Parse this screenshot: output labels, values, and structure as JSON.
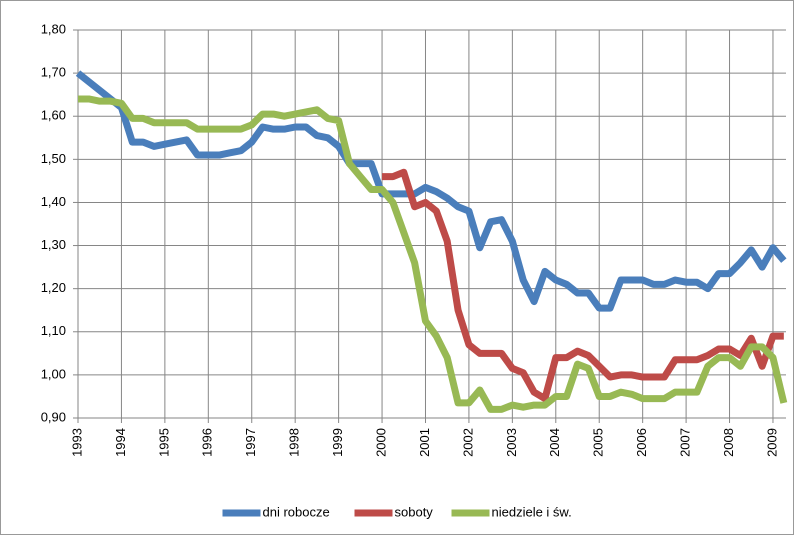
{
  "chart_data": {
    "type": "line",
    "x": [
      1993,
      1993.25,
      1993.5,
      1993.75,
      1994,
      1994.25,
      1994.5,
      1994.75,
      1995,
      1995.25,
      1995.5,
      1995.75,
      1996,
      1996.25,
      1996.5,
      1996.75,
      1997,
      1997.25,
      1997.5,
      1997.75,
      1998,
      1998.25,
      1998.5,
      1998.75,
      1999,
      1999.25,
      1999.5,
      1999.75,
      2000,
      2000.25,
      2000.5,
      2000.75,
      2001,
      2001.25,
      2001.5,
      2001.75,
      2002,
      2002.25,
      2002.5,
      2002.75,
      2003,
      2003.25,
      2003.5,
      2003.75,
      2004,
      2004.25,
      2004.5,
      2004.75,
      2005,
      2005.25,
      2005.5,
      2005.75,
      2006,
      2006.25,
      2006.5,
      2006.75,
      2007,
      2007.25,
      2007.5,
      2007.75,
      2008,
      2008.25,
      2008.5,
      2008.75,
      2009,
      2009.25
    ],
    "series": [
      {
        "name": "dni robocze",
        "color": "#4a7ebb",
        "values": [
          1.7,
          1.68,
          1.66,
          1.64,
          1.62,
          1.54,
          1.54,
          1.53,
          1.535,
          1.54,
          1.545,
          1.51,
          1.51,
          1.51,
          1.515,
          1.52,
          1.54,
          1.575,
          1.57,
          1.57,
          1.575,
          1.575,
          1.555,
          1.55,
          1.53,
          1.49,
          1.49,
          1.49,
          1.42,
          1.42,
          1.42,
          1.42,
          1.435,
          1.425,
          1.41,
          1.39,
          1.38,
          1.295,
          1.355,
          1.36,
          1.31,
          1.22,
          1.17,
          1.24,
          1.22,
          1.21,
          1.19,
          1.19,
          1.155,
          1.155,
          1.22,
          1.22,
          1.22,
          1.21,
          1.21,
          1.22,
          1.215,
          1.215,
          1.2,
          1.235,
          1.235,
          1.26,
          1.29,
          1.25,
          1.295,
          1.265
        ]
      },
      {
        "name": "soboty",
        "color": "#be4b48",
        "values": [
          null,
          null,
          null,
          null,
          null,
          null,
          null,
          null,
          null,
          null,
          null,
          null,
          null,
          null,
          null,
          null,
          null,
          null,
          null,
          null,
          null,
          null,
          null,
          null,
          null,
          null,
          null,
          null,
          1.46,
          1.46,
          1.47,
          1.39,
          1.4,
          1.38,
          1.31,
          1.15,
          1.07,
          1.05,
          1.05,
          1.05,
          1.015,
          1.005,
          0.96,
          0.945,
          1.04,
          1.04,
          1.055,
          1.045,
          1.02,
          0.995,
          1.0,
          1.0,
          0.995,
          0.995,
          0.995,
          1.035,
          1.035,
          1.035,
          1.045,
          1.06,
          1.06,
          1.045,
          1.085,
          1.02,
          1.09,
          1.09
        ]
      },
      {
        "name": "niedziele i św.",
        "color": "#98b954",
        "values": [
          1.64,
          1.64,
          1.635,
          1.635,
          1.63,
          1.595,
          1.595,
          1.585,
          1.585,
          1.585,
          1.585,
          1.57,
          1.57,
          1.57,
          1.57,
          1.57,
          1.58,
          1.605,
          1.605,
          1.6,
          1.605,
          1.61,
          1.615,
          1.595,
          1.59,
          1.49,
          1.46,
          1.43,
          1.43,
          1.4,
          1.33,
          1.26,
          1.125,
          1.09,
          1.04,
          0.935,
          0.935,
          0.965,
          0.92,
          0.92,
          0.93,
          0.925,
          0.93,
          0.93,
          0.95,
          0.95,
          1.025,
          1.015,
          0.95,
          0.95,
          0.96,
          0.955,
          0.945,
          0.945,
          0.945,
          0.96,
          0.96,
          0.96,
          1.02,
          1.04,
          1.04,
          1.02,
          1.065,
          1.065,
          1.04,
          0.935
        ]
      }
    ],
    "xlim": [
      1993,
      2009.3
    ],
    "xticks": [
      1993,
      1994,
      1995,
      1996,
      1997,
      1998,
      1999,
      2000,
      2001,
      2002,
      2003,
      2004,
      2005,
      2006,
      2007,
      2008,
      2009
    ],
    "ylim": [
      0.9,
      1.8
    ],
    "yticks": [
      {
        "value": 0.9,
        "label": "0,90"
      },
      {
        "value": 1.0,
        "label": "1,00"
      },
      {
        "value": 1.1,
        "label": "1,10"
      },
      {
        "value": 1.2,
        "label": "1,20"
      },
      {
        "value": 1.3,
        "label": "1,30"
      },
      {
        "value": 1.4,
        "label": "1,40"
      },
      {
        "value": 1.5,
        "label": "1,50"
      },
      {
        "value": 1.6,
        "label": "1,60"
      },
      {
        "value": 1.7,
        "label": "1,70"
      },
      {
        "value": 1.8,
        "label": "1,80"
      }
    ],
    "grid": true,
    "legend": "bottom"
  }
}
